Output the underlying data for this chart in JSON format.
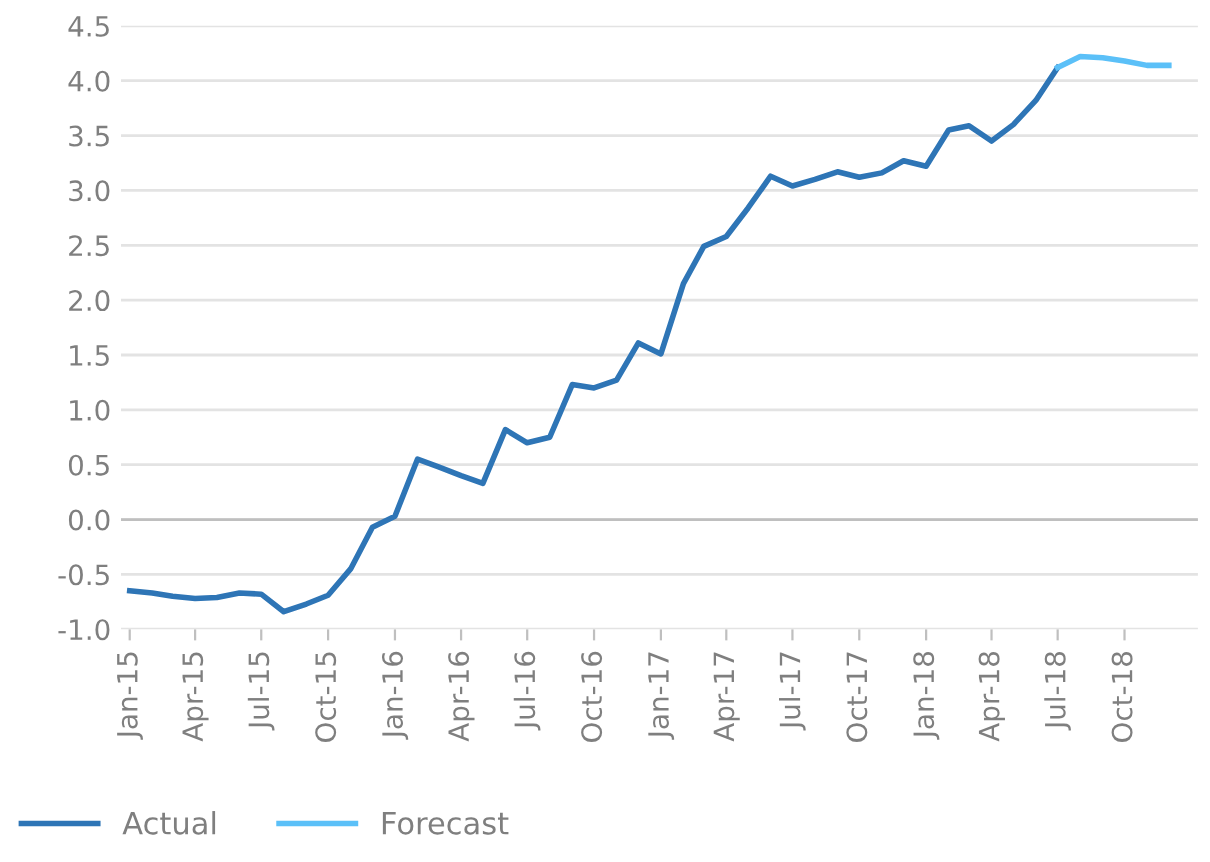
{
  "chart_data": {
    "type": "line",
    "x": [
      "2015-01",
      "2015-02",
      "2015-03",
      "2015-04",
      "2015-05",
      "2015-06",
      "2015-07",
      "2015-08",
      "2015-09",
      "2015-10",
      "2015-11",
      "2015-12",
      "2016-01",
      "2016-02",
      "2016-03",
      "2016-04",
      "2016-05",
      "2016-06",
      "2016-07",
      "2016-08",
      "2016-09",
      "2016-10",
      "2016-11",
      "2016-12",
      "2017-01",
      "2017-02",
      "2017-03",
      "2017-04",
      "2017-05",
      "2017-06",
      "2017-07",
      "2017-08",
      "2017-09",
      "2017-10",
      "2017-11",
      "2017-12",
      "2018-01",
      "2018-02",
      "2018-03",
      "2018-04",
      "2018-05",
      "2018-06",
      "2018-07",
      "2018-08",
      "2018-09",
      "2018-10",
      "2018-11",
      "2018-12"
    ],
    "series": [
      {
        "name": "Actual",
        "color": "#2e75b6",
        "values": [
          -0.65,
          -0.67,
          -0.7,
          -0.72,
          -0.71,
          -0.67,
          -0.68,
          -0.84,
          -0.77,
          -0.69,
          -0.45,
          -0.07,
          0.03,
          0.55,
          0.48,
          0.4,
          0.33,
          0.82,
          0.7,
          0.75,
          1.23,
          1.2,
          1.27,
          1.61,
          1.51,
          2.15,
          2.49,
          2.58,
          2.84,
          3.13,
          3.04,
          3.1,
          3.17,
          3.12,
          3.16,
          3.27,
          3.22,
          3.55,
          3.59,
          3.45,
          3.6,
          3.82,
          4.12,
          null,
          null,
          null,
          null,
          null
        ]
      },
      {
        "name": "Forecast",
        "color": "#5bc0f8",
        "values": [
          null,
          null,
          null,
          null,
          null,
          null,
          null,
          null,
          null,
          null,
          null,
          null,
          null,
          null,
          null,
          null,
          null,
          null,
          null,
          null,
          null,
          null,
          null,
          null,
          null,
          null,
          null,
          null,
          null,
          null,
          null,
          null,
          null,
          null,
          null,
          null,
          null,
          null,
          null,
          null,
          null,
          null,
          4.12,
          4.22,
          4.21,
          4.18,
          4.14,
          4.14
        ]
      }
    ],
    "xlim": [
      "2014-12-20",
      "2019-01-10"
    ],
    "xticks": [
      {
        "value": "2015-01",
        "label": "Jan-15"
      },
      {
        "value": "2015-04",
        "label": "Apr-15"
      },
      {
        "value": "2015-07",
        "label": "Jul-15"
      },
      {
        "value": "2015-10",
        "label": "Oct-15"
      },
      {
        "value": "2016-01",
        "label": "Jan-16"
      },
      {
        "value": "2016-04",
        "label": "Apr-16"
      },
      {
        "value": "2016-07",
        "label": "Jul-16"
      },
      {
        "value": "2016-10",
        "label": "Oct-16"
      },
      {
        "value": "2017-01",
        "label": "Jan-17"
      },
      {
        "value": "2017-04",
        "label": "Apr-17"
      },
      {
        "value": "2017-07",
        "label": "Jul-17"
      },
      {
        "value": "2017-10",
        "label": "Oct-17"
      },
      {
        "value": "2018-01",
        "label": "Jan-18"
      },
      {
        "value": "2018-04",
        "label": "Apr-18"
      },
      {
        "value": "2018-07",
        "label": "Jul-18"
      },
      {
        "value": "2018-10",
        "label": "Oct-18"
      }
    ],
    "ylim": [
      -1.0,
      4.5
    ],
    "yticks": [
      {
        "value": -1.0,
        "label": "-1.0"
      },
      {
        "value": -0.5,
        "label": "-0.5"
      },
      {
        "value": 0.0,
        "label": "0.0"
      },
      {
        "value": 0.5,
        "label": "0.5"
      },
      {
        "value": 1.0,
        "label": "1.0"
      },
      {
        "value": 1.5,
        "label": "1.5"
      },
      {
        "value": 2.0,
        "label": "2.0"
      },
      {
        "value": 2.5,
        "label": "2.5"
      },
      {
        "value": 3.0,
        "label": "3.0"
      },
      {
        "value": 3.5,
        "label": "3.5"
      },
      {
        "value": 4.0,
        "label": "4.0"
      },
      {
        "value": 4.5,
        "label": "4.5"
      }
    ],
    "grid": "y",
    "legend": "bottom left",
    "marker": "none",
    "line_style": "solid"
  }
}
